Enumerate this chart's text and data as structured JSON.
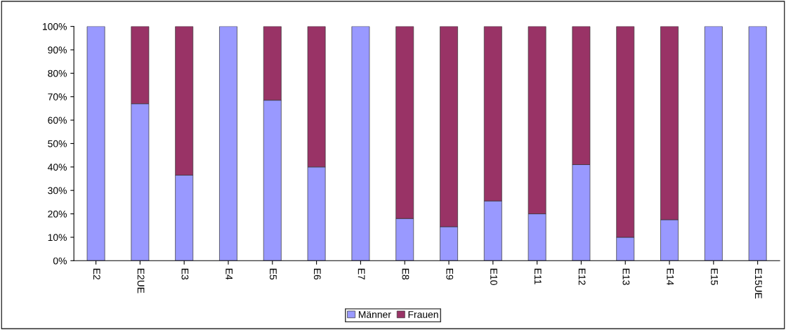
{
  "chart_data": {
    "type": "bar",
    "stacked": true,
    "categories": [
      "E2",
      "E2UE",
      "E3",
      "E4",
      "E5",
      "E6",
      "E7",
      "E8",
      "E9",
      "E10",
      "E11",
      "E12",
      "E13",
      "E14",
      "E15",
      "E15UE"
    ],
    "series": [
      {
        "name": "Männer",
        "color": "#9999ff",
        "values": [
          100,
          67,
          36.5,
          100,
          68.5,
          40,
          100,
          18,
          14.5,
          25.5,
          20,
          41,
          10,
          17.5,
          100,
          100
        ]
      },
      {
        "name": "Frauen",
        "color": "#993366",
        "values": [
          null,
          33,
          63.5,
          null,
          31.5,
          60,
          null,
          82,
          85.5,
          74.5,
          80,
          59,
          90,
          82.5,
          null,
          null
        ]
      }
    ],
    "ylim": [
      0,
      100
    ],
    "yticks": [
      {
        "value": 0,
        "label": "0%"
      },
      {
        "value": 10,
        "label": "10%"
      },
      {
        "value": 20,
        "label": "20%"
      },
      {
        "value": 30,
        "label": "30%"
      },
      {
        "value": 40,
        "label": "40%"
      },
      {
        "value": 50,
        "label": "50%"
      },
      {
        "value": 60,
        "label": "60%"
      },
      {
        "value": 70,
        "label": "70%"
      },
      {
        "value": 80,
        "label": "80%"
      },
      {
        "value": 90,
        "label": "90%"
      },
      {
        "value": 100,
        "label": "100%"
      }
    ],
    "grid": false,
    "legend": "bottom"
  }
}
